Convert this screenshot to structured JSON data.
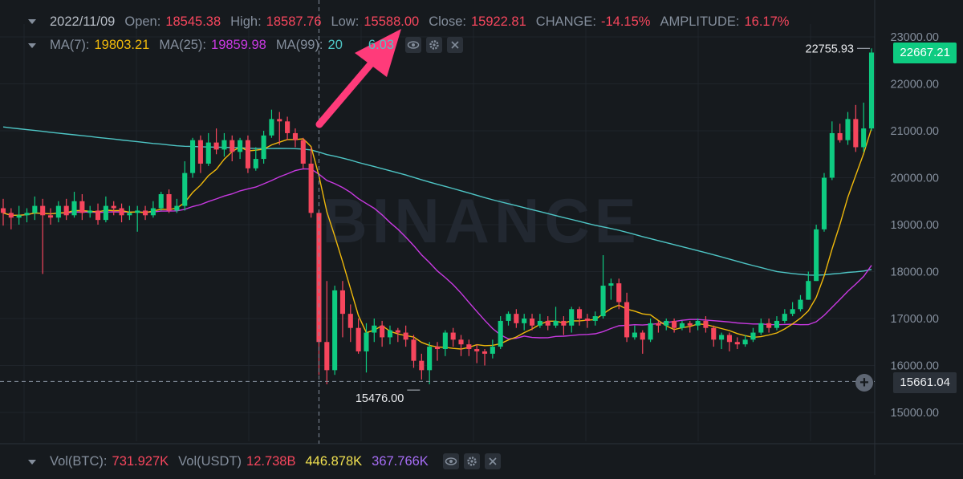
{
  "legend": {
    "date": "2022/11/09",
    "open_label": "Open:",
    "open": "18545.38",
    "high_label": "High:",
    "high": "18587.76",
    "low_label": "Low:",
    "low": "15588.00",
    "close_label": "Close:",
    "close": "15922.81",
    "change_label": "CHANGE:",
    "change": "-14.15%",
    "amplitude_label": "AMPLITUDE:",
    "amplitude": "16.17%"
  },
  "ma_legend": {
    "ma7_label": "MA(7):",
    "ma7": "19803.21",
    "ma25_label": "MA(25):",
    "ma25": "19859.98",
    "ma99_label": "MA(99):",
    "ma99_visible": "20",
    "ma99_visible_tail": "6.03"
  },
  "vol_legend": {
    "vol_btc_label": "Vol(BTC):",
    "vol_btc": "731.927K",
    "vol_usdt_label": "Vol(USDT)",
    "vol_usdt": "12.738B",
    "vol_ma1": "446.878K",
    "vol_ma2": "367.766K"
  },
  "price_tags": {
    "last_price": "22667.21",
    "high_marker": "22755.93",
    "crosshair_price": "15661.04",
    "low_marker": "15476.00"
  },
  "colors": {
    "background": "#161a1e",
    "up": "#0ecb81",
    "down": "#f6465d",
    "ma7": "#f0b90b",
    "ma25": "#c839e1",
    "ma99": "#4ec5c5",
    "arrow": "#ff3b7a",
    "grid": "#1f242b"
  },
  "icons": [
    "eye-icon",
    "gear-icon",
    "close-icon",
    "plus-icon",
    "caret-down-icon"
  ],
  "watermark": "BINANCE",
  "chart_data": {
    "type": "candlestick",
    "y_ticks": [
      "23000.00",
      "22000.00",
      "21000.00",
      "20000.00",
      "19000.00",
      "18000.00",
      "17000.00",
      "16000.00",
      "15000.00"
    ],
    "ylim": [
      14800,
      23300
    ],
    "candles": [
      [
        19350,
        19250,
        19550,
        18980
      ],
      [
        19250,
        19150,
        19350,
        18900
      ],
      [
        19150,
        19200,
        19400,
        19000
      ],
      [
        19200,
        19250,
        19350,
        19050
      ],
      [
        19250,
        19400,
        19600,
        19100
      ],
      [
        19400,
        19200,
        19550,
        17950
      ],
      [
        19200,
        19150,
        19350,
        19000
      ],
      [
        19150,
        19400,
        19500,
        19050
      ],
      [
        19400,
        19200,
        19550,
        19100
      ],
      [
        19200,
        19500,
        19700,
        19150
      ],
      [
        19500,
        19250,
        19650,
        19100
      ],
      [
        19250,
        19300,
        19400,
        19150
      ],
      [
        19300,
        19100,
        19450,
        19000
      ],
      [
        19100,
        19400,
        19600,
        19050
      ],
      [
        19400,
        19350,
        19500,
        19200
      ],
      [
        19350,
        19200,
        19450,
        19050
      ],
      [
        19200,
        19250,
        19400,
        19100
      ],
      [
        19250,
        19300,
        19400,
        18850
      ],
      [
        19300,
        19200,
        19400,
        19100
      ],
      [
        19200,
        19350,
        19500,
        19150
      ],
      [
        19350,
        19650,
        19700,
        19300
      ],
      [
        19650,
        19300,
        19750,
        19250
      ],
      [
        19300,
        19400,
        19550,
        19250
      ],
      [
        19400,
        20100,
        20350,
        19300
      ],
      [
        20100,
        20800,
        20850,
        20000
      ],
      [
        20800,
        20300,
        20900,
        20100
      ],
      [
        20300,
        20750,
        20950,
        20250
      ],
      [
        20750,
        20600,
        21050,
        20500
      ],
      [
        20600,
        20800,
        20950,
        20450
      ],
      [
        20800,
        20550,
        20900,
        20350
      ],
      [
        20550,
        20800,
        20850,
        20400
      ],
      [
        20800,
        20200,
        20900,
        20100
      ],
      [
        20200,
        20400,
        20650,
        20150
      ],
      [
        20400,
        20900,
        21000,
        20300
      ],
      [
        20900,
        21250,
        21450,
        20850
      ],
      [
        21250,
        21200,
        21400,
        20700
      ],
      [
        21200,
        20950,
        21300,
        20800
      ],
      [
        20950,
        20800,
        21050,
        20650
      ],
      [
        20800,
        20300,
        20850,
        20200
      ],
      [
        20300,
        19250,
        20650,
        19150
      ],
      [
        19250,
        16500,
        19300,
        15800
      ],
      [
        16500,
        15900,
        17800,
        15600
      ],
      [
        15900,
        17600,
        17700,
        15800
      ],
      [
        17600,
        17100,
        17800,
        16600
      ],
      [
        17100,
        16800,
        17300,
        16500
      ],
      [
        16800,
        16300,
        17000,
        16250
      ],
      [
        16300,
        16700,
        16900,
        15850
      ],
      [
        16700,
        16850,
        17000,
        16500
      ],
      [
        16850,
        16600,
        16950,
        16400
      ],
      [
        16600,
        16750,
        16850,
        16450
      ],
      [
        16750,
        16700,
        16800,
        16500
      ],
      [
        16700,
        16550,
        16850,
        16400
      ],
      [
        16550,
        16100,
        16650,
        15950
      ],
      [
        16100,
        15900,
        16250,
        15700
      ],
      [
        15900,
        16400,
        16500,
        15600
      ],
      [
        16400,
        16350,
        16500,
        16100
      ],
      [
        16350,
        16700,
        16750,
        16200
      ],
      [
        16700,
        16550,
        16800,
        16400
      ],
      [
        16550,
        16450,
        16650,
        16200
      ],
      [
        16450,
        16350,
        16550,
        16200
      ],
      [
        16350,
        16300,
        16450,
        16050
      ],
      [
        16300,
        16250,
        16350,
        16000
      ],
      [
        16250,
        16400,
        16550,
        16150
      ],
      [
        16400,
        16950,
        17050,
        16350
      ],
      [
        16950,
        17100,
        17150,
        16850
      ],
      [
        17100,
        16900,
        17200,
        16800
      ],
      [
        16900,
        17000,
        17100,
        16750
      ],
      [
        17000,
        16850,
        17100,
        16750
      ],
      [
        16850,
        16950,
        17100,
        16800
      ],
      [
        16950,
        16850,
        17050,
        16750
      ],
      [
        16850,
        16950,
        17250,
        16800
      ],
      [
        16950,
        16850,
        17050,
        16650
      ],
      [
        16850,
        17200,
        17250,
        16700
      ],
      [
        17200,
        17000,
        17250,
        16850
      ],
      [
        17000,
        16950,
        17100,
        16800
      ],
      [
        16950,
        17050,
        17150,
        16850
      ],
      [
        17050,
        17700,
        18350,
        17000
      ],
      [
        17700,
        17750,
        17850,
        17400
      ],
      [
        17750,
        17350,
        17850,
        17200
      ],
      [
        17350,
        16600,
        17550,
        16500
      ],
      [
        16600,
        16700,
        16850,
        16550
      ],
      [
        16700,
        16550,
        16750,
        16250
      ],
      [
        16550,
        16900,
        17000,
        16500
      ],
      [
        16900,
        16850,
        16950,
        16700
      ],
      [
        16850,
        16950,
        17000,
        16750
      ],
      [
        16950,
        16800,
        17000,
        16700
      ],
      [
        16800,
        16900,
        16950,
        16750
      ],
      [
        16900,
        16850,
        16950,
        16700
      ],
      [
        16850,
        16950,
        17000,
        16750
      ],
      [
        16950,
        16800,
        17050,
        16700
      ],
      [
        16800,
        16550,
        16850,
        16400
      ],
      [
        16550,
        16650,
        16700,
        16350
      ],
      [
        16650,
        16500,
        16700,
        16300
      ],
      [
        16500,
        16450,
        16600,
        16350
      ],
      [
        16450,
        16550,
        16650,
        16400
      ],
      [
        16550,
        16700,
        16800,
        16500
      ],
      [
        16700,
        16900,
        17000,
        16650
      ],
      [
        16900,
        16800,
        17000,
        16700
      ],
      [
        16800,
        16950,
        17050,
        16750
      ],
      [
        16950,
        17100,
        17200,
        16900
      ],
      [
        17100,
        17200,
        17350,
        17050
      ],
      [
        17200,
        17400,
        17500,
        17150
      ],
      [
        17400,
        17800,
        18000,
        17400
      ],
      [
        17800,
        18900,
        19000,
        17800
      ],
      [
        18900,
        20000,
        20100,
        18850
      ],
      [
        20000,
        20950,
        21200,
        19950
      ],
      [
        20950,
        20800,
        21150,
        20750
      ],
      [
        20800,
        21250,
        21400,
        20700
      ],
      [
        21250,
        20650,
        21550,
        20550
      ],
      [
        20650,
        21050,
        21600,
        20550
      ],
      [
        21050,
        22667,
        22756,
        21000
      ]
    ]
  }
}
